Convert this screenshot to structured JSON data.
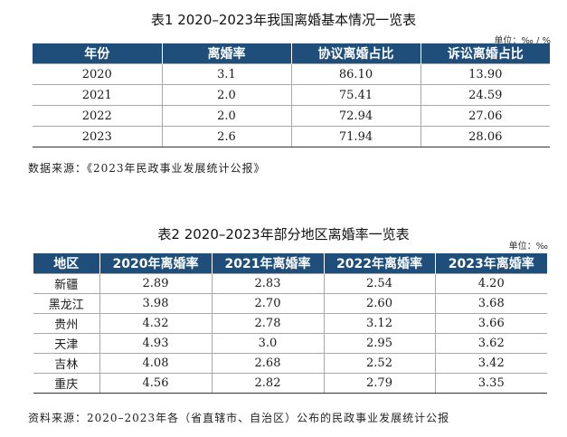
{
  "table1": {
    "title": "表1  2020–2023年我国离婚基本情况一览表",
    "unit": "单位：‰ / %",
    "headers": [
      "年份",
      "离婚率",
      "协议离婚占比",
      "诉讼离婚占比"
    ],
    "rows": [
      [
        "2020",
        "3.1",
        "86.10",
        "13.90"
      ],
      [
        "2021",
        "2.0",
        "75.41",
        "24.59"
      ],
      [
        "2022",
        "2.0",
        "72.94",
        "27.06"
      ],
      [
        "2023",
        "2.6",
        "71.94",
        "28.06"
      ]
    ],
    "source": "数据来源：《2023年民政事业发展统计公报》"
  },
  "table2": {
    "title": "表2  2020–2023年部分地区离婚率一览表",
    "unit": "单位：‰",
    "headers": [
      "地区",
      "2020年离婚率",
      "2021年离婚率",
      "2022年离婚率",
      "2023年离婚率"
    ],
    "rows": [
      [
        "新疆",
        "2.89",
        "2.83",
        "2.54",
        "4.20"
      ],
      [
        "黑龙江",
        "3.98",
        "2.70",
        "2.60",
        "3.68"
      ],
      [
        "贵州",
        "4.32",
        "2.78",
        "3.12",
        "3.66"
      ],
      [
        "天津",
        "4.93",
        "3.0",
        "2.95",
        "3.62"
      ],
      [
        "吉林",
        "4.08",
        "2.68",
        "2.52",
        "3.42"
      ],
      [
        "重庆",
        "4.56",
        "2.82",
        "2.79",
        "3.35"
      ]
    ],
    "source": "资料来源：2020–2023年各（省直辖市、自治区）公布的民政事业发展统计公报"
  },
  "colors": {
    "header_bg": "#1f4e7a",
    "header_text": "#ffffff"
  }
}
